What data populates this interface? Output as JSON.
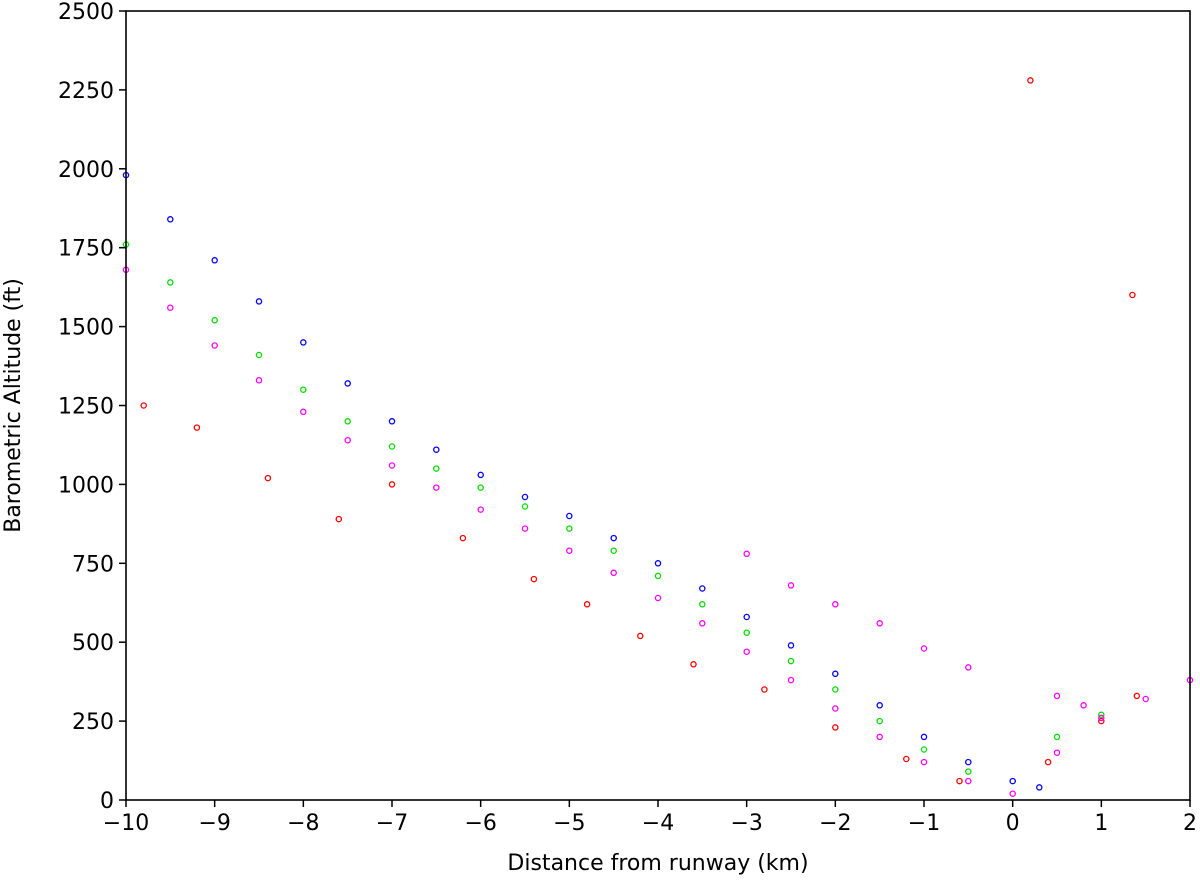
{
  "chart_data": {
    "type": "scatter",
    "title": "",
    "xlabel": "Distance from runway (km)",
    "ylabel": "Barometric Altitude (ft)",
    "xlim": [
      -10,
      2
    ],
    "ylim": [
      0,
      2500
    ],
    "x_ticks": [
      -10,
      -9,
      -8,
      -7,
      -6,
      -5,
      -4,
      -3,
      -2,
      -1,
      0,
      1,
      2
    ],
    "x_tick_labels": [
      "−10",
      "−9",
      "−8",
      "−7",
      "−6",
      "−5",
      "−4",
      "−3",
      "−2",
      "−1",
      "0",
      "1",
      "2"
    ],
    "y_ticks": [
      0,
      250,
      500,
      750,
      1000,
      1250,
      1500,
      1750,
      2000,
      2250,
      2500
    ],
    "y_tick_labels": [
      "0",
      "250",
      "500",
      "750",
      "1000",
      "1250",
      "1500",
      "1750",
      "2000",
      "2250",
      "2500"
    ],
    "grid": false,
    "legend": "none",
    "series": [
      {
        "color": "#0000ff",
        "points": [
          [
            -10,
            1980
          ],
          [
            -9.5,
            1840
          ],
          [
            -9,
            1710
          ],
          [
            -8.5,
            1580
          ],
          [
            -8,
            1450
          ],
          [
            -7.5,
            1320
          ],
          [
            -7,
            1200
          ],
          [
            -6.5,
            1110
          ],
          [
            -6,
            1030
          ],
          [
            -5.5,
            960
          ],
          [
            -5,
            900
          ],
          [
            -4.5,
            830
          ],
          [
            -4,
            750
          ],
          [
            -3.5,
            670
          ],
          [
            -3,
            580
          ],
          [
            -2.5,
            490
          ],
          [
            -2,
            400
          ],
          [
            -1.5,
            300
          ],
          [
            -1,
            200
          ],
          [
            -0.5,
            120
          ],
          [
            0,
            60
          ],
          [
            0.3,
            40
          ]
        ]
      },
      {
        "color": "#00dd00",
        "points": [
          [
            -10,
            1760
          ],
          [
            -9.5,
            1640
          ],
          [
            -9,
            1520
          ],
          [
            -8.5,
            1410
          ],
          [
            -8,
            1300
          ],
          [
            -7.5,
            1200
          ],
          [
            -7,
            1120
          ],
          [
            -6.5,
            1050
          ],
          [
            -6,
            990
          ],
          [
            -5.5,
            930
          ],
          [
            -5,
            860
          ],
          [
            -4.5,
            790
          ],
          [
            -4,
            710
          ],
          [
            -3.5,
            620
          ],
          [
            -3,
            530
          ],
          [
            -2.5,
            440
          ],
          [
            -2,
            350
          ],
          [
            -1.5,
            250
          ],
          [
            -1,
            160
          ],
          [
            -0.5,
            90
          ],
          [
            0.5,
            200
          ],
          [
            1,
            270
          ]
        ]
      },
      {
        "color": "#ff0000",
        "points": [
          [
            -9.8,
            1250
          ],
          [
            -9.2,
            1180
          ],
          [
            -8.4,
            1020
          ],
          [
            -7.6,
            890
          ],
          [
            -7,
            1000
          ],
          [
            -6.2,
            830
          ],
          [
            -5.4,
            700
          ],
          [
            -4.8,
            620
          ],
          [
            -4.2,
            520
          ],
          [
            -3.6,
            430
          ],
          [
            -2.8,
            350
          ],
          [
            -2,
            230
          ],
          [
            -1.2,
            130
          ],
          [
            -0.6,
            60
          ],
          [
            0.4,
            120
          ],
          [
            1,
            250
          ],
          [
            1.4,
            330
          ],
          [
            0.2,
            2280
          ],
          [
            1.35,
            1600
          ]
        ]
      },
      {
        "color": "#ff00ff",
        "points": [
          [
            -10,
            1680
          ],
          [
            -9.5,
            1560
          ],
          [
            -9,
            1440
          ],
          [
            -8.5,
            1330
          ],
          [
            -8,
            1230
          ],
          [
            -7.5,
            1140
          ],
          [
            -7,
            1060
          ],
          [
            -6.5,
            990
          ],
          [
            -6,
            920
          ],
          [
            -5.5,
            860
          ],
          [
            -5,
            790
          ],
          [
            -4.5,
            720
          ],
          [
            -4,
            640
          ],
          [
            -3.5,
            560
          ],
          [
            -3,
            470
          ],
          [
            -2.5,
            380
          ],
          [
            -2,
            290
          ],
          [
            -1.5,
            200
          ],
          [
            -1,
            120
          ],
          [
            -0.5,
            60
          ],
          [
            0,
            20
          ],
          [
            0.5,
            150
          ],
          [
            1,
            260
          ],
          [
            1.5,
            320
          ],
          [
            2,
            380
          ],
          [
            -3,
            780
          ],
          [
            -2.5,
            680
          ],
          [
            -2,
            620
          ],
          [
            -1.5,
            560
          ],
          [
            -1,
            480
          ],
          [
            -0.5,
            420
          ],
          [
            0.5,
            330
          ],
          [
            0.8,
            300
          ]
        ]
      }
    ]
  }
}
